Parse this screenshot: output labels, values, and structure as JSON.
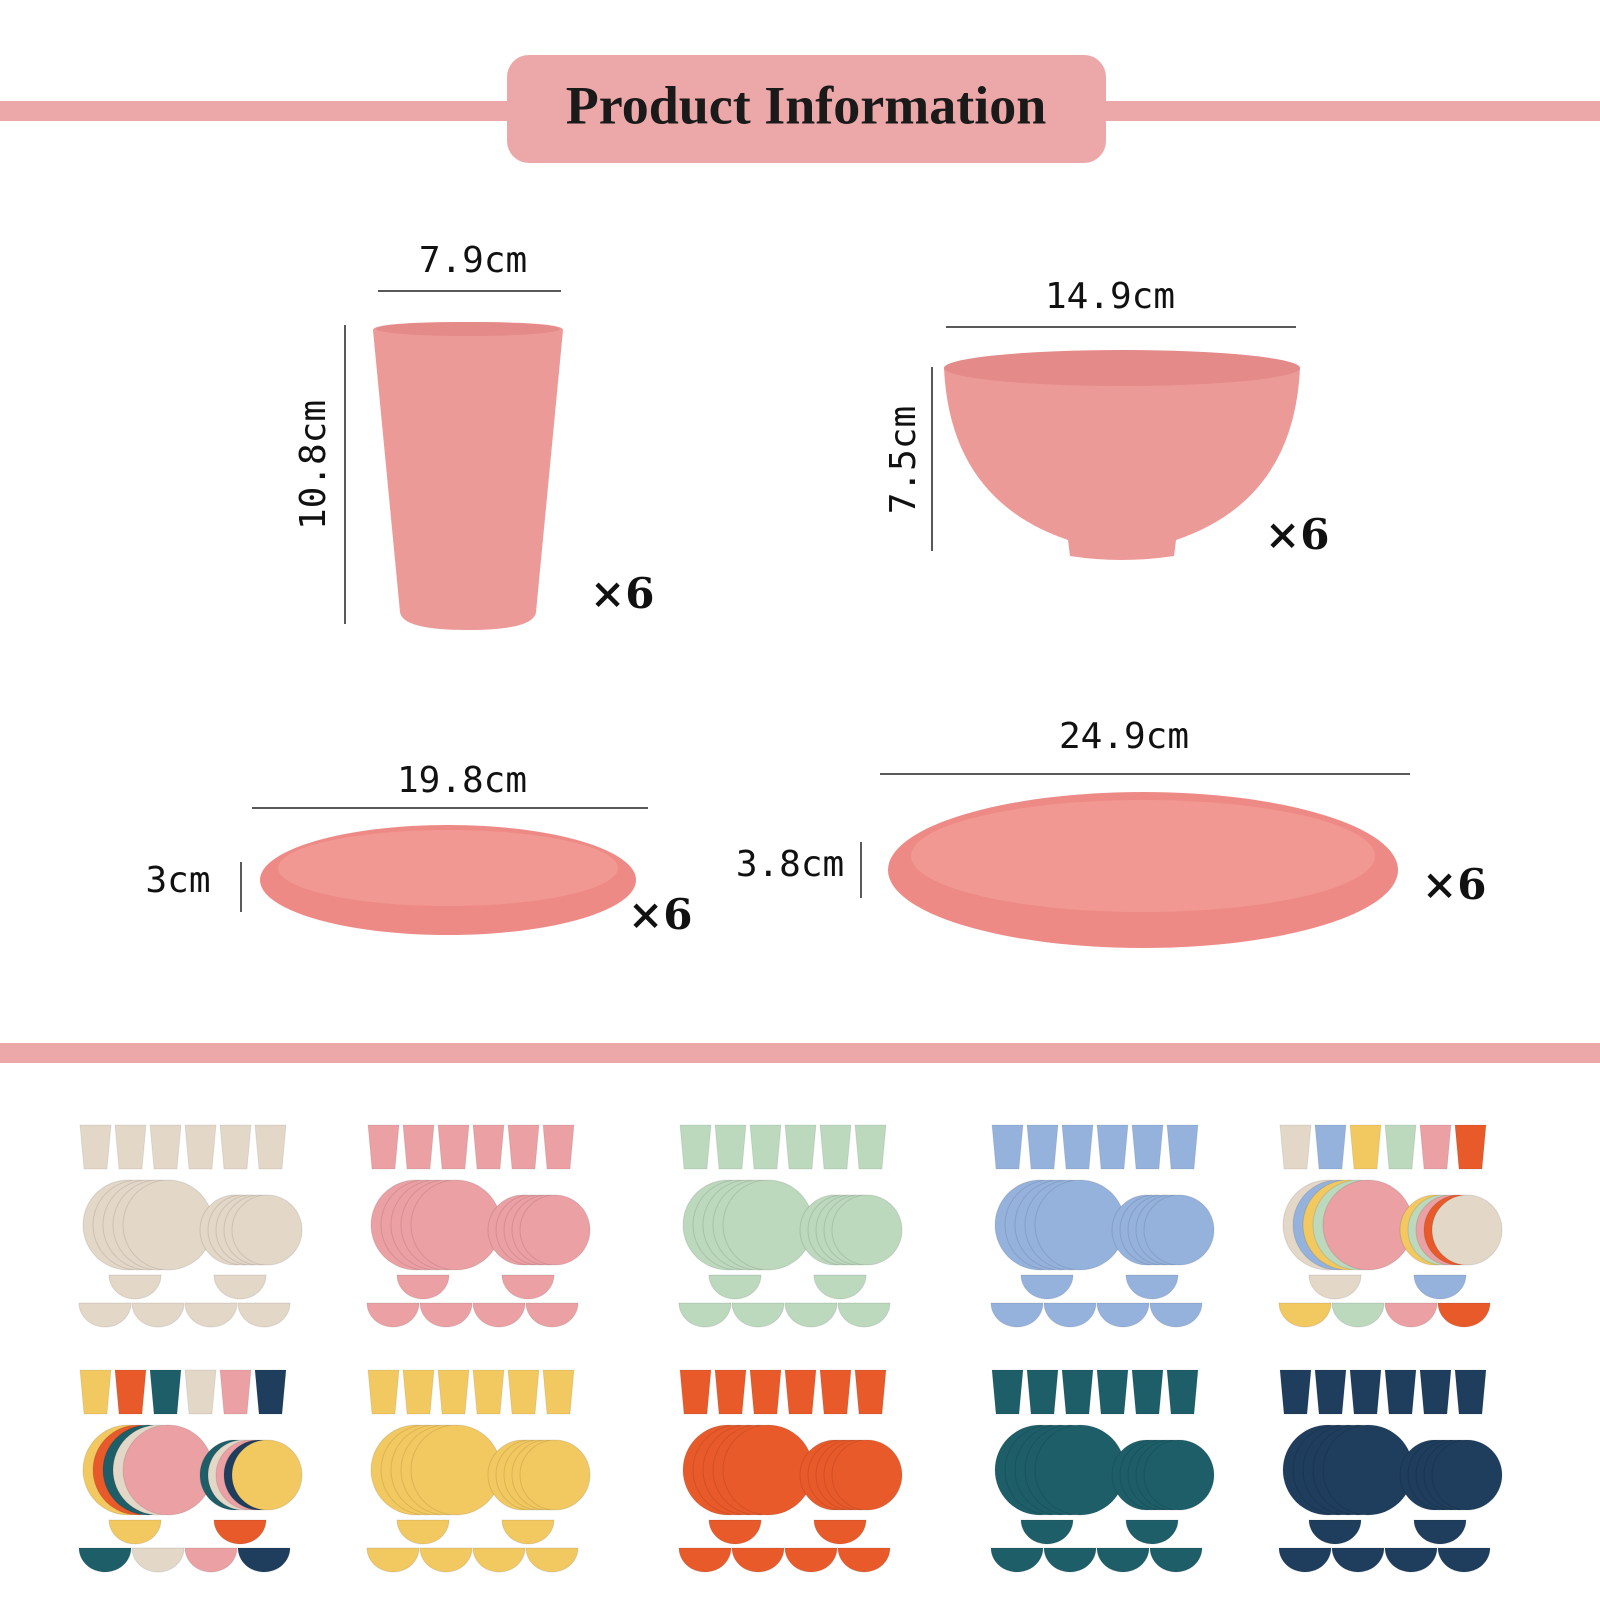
{
  "header": {
    "title": "Product Information"
  },
  "items": [
    {
      "width": "7.9cm",
      "height": "10.8cm",
      "quantity": "×6"
    },
    {
      "width": "14.9cm",
      "height": "7.5cm",
      "quantity": "×6"
    },
    {
      "width": "19.8cm",
      "height": "3cm",
      "quantity": "×6"
    },
    {
      "width": "24.9cm",
      "height": "3.8cm",
      "quantity": "×6"
    }
  ]
}
